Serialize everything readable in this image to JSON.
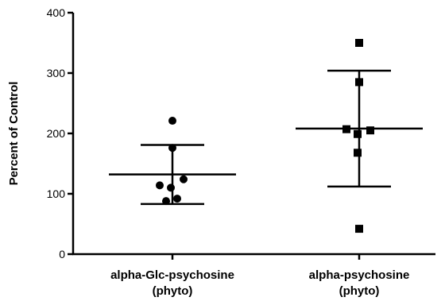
{
  "chart_data": {
    "type": "scatter",
    "title": "",
    "xlabel": "",
    "ylabel": "Percent of Control",
    "ylim": [
      0,
      400
    ],
    "yticks": [
      0,
      100,
      200,
      300,
      400
    ],
    "grid": false,
    "categories": [
      [
        "alpha-Glc-psychosine",
        "(phyto)"
      ],
      [
        "alpha-psychosine",
        "(phyto)"
      ]
    ],
    "series": [
      {
        "marker": "circle",
        "color": "#000000",
        "points": [
          221,
          176,
          124,
          114,
          110,
          92,
          88
        ],
        "mean": 132,
        "sd_upper": 181,
        "sd_lower": 83
      },
      {
        "marker": "square",
        "color": "#000000",
        "points": [
          350,
          285,
          207,
          205,
          199,
          168,
          42
        ],
        "mean": 208,
        "sd_upper": 304,
        "sd_lower": 112
      }
    ]
  }
}
